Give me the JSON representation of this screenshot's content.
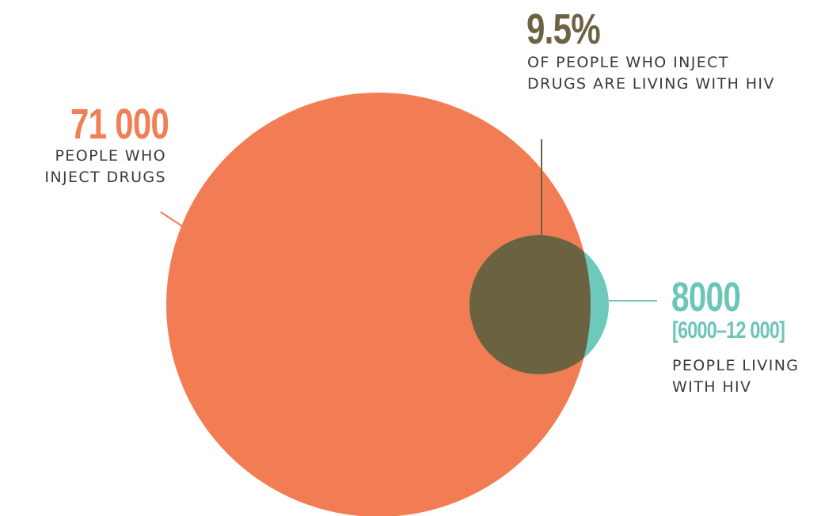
{
  "colors": {
    "people_who_inject_drugs": "#f27d54",
    "people_living_with_hiv": "#6cc9bb",
    "overlap": "#6b6340"
  },
  "pwid": {
    "value": "71 000",
    "caption_line1": "PEOPLE WHO",
    "caption_line2": "INJECT DRUGS"
  },
  "overlap": {
    "value": "9.5%",
    "caption_line1": "OF PEOPLE WHO INJECT",
    "caption_line2": "DRUGS ARE LIVING WITH HIV"
  },
  "hiv": {
    "value": "8000",
    "range": "[6000–12 000]",
    "caption_line1": "PEOPLE LIVING",
    "caption_line2": "WITH HIV"
  }
}
